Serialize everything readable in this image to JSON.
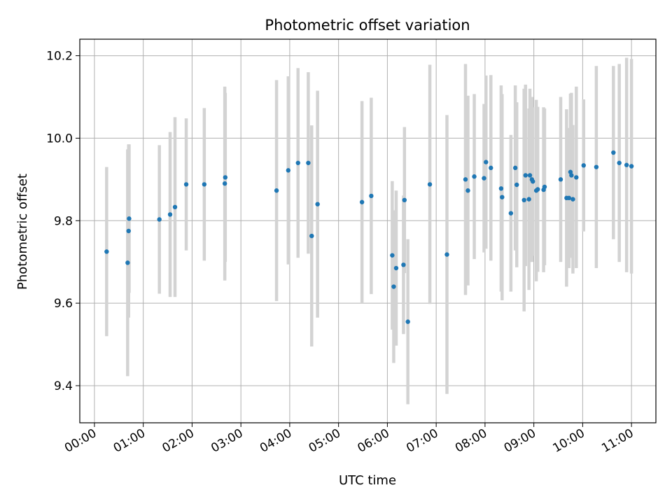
{
  "chart_data": {
    "type": "scatter",
    "title": "Photometric offset variation",
    "xlabel": "UTC time",
    "ylabel": "Photometric offset",
    "x_unit": "hours (UTC)",
    "xlim": [
      -0.3,
      11.5
    ],
    "ylim": [
      9.31,
      10.24
    ],
    "x_ticks": [
      0,
      1,
      2,
      3,
      4,
      5,
      6,
      7,
      8,
      9,
      10,
      11
    ],
    "x_tick_labels": [
      "00:00",
      "01:00",
      "02:00",
      "03:00",
      "04:00",
      "05:00",
      "06:00",
      "07:00",
      "08:00",
      "09:00",
      "10:00",
      "11:00"
    ],
    "y_ticks": [
      9.4,
      9.6,
      9.8,
      10.0,
      10.2
    ],
    "y_tick_labels": [
      "9.4",
      "9.6",
      "9.8",
      "10.0",
      "10.2"
    ],
    "grid": true,
    "colors": {
      "points": "#1f77b4",
      "errorbars": "#d3d3d3",
      "grid": "#b0b0b0"
    },
    "series": [
      {
        "x": [
          0.25,
          0.68,
          0.7,
          0.71,
          1.33,
          1.55,
          1.65,
          1.88,
          2.25,
          2.67,
          2.68,
          3.73,
          3.97,
          4.17,
          4.38,
          4.45,
          4.57,
          5.48,
          5.67,
          6.1,
          6.13,
          6.18,
          6.33,
          6.35,
          6.42,
          6.87,
          7.22,
          7.6,
          7.65,
          7.78,
          7.98,
          8.02,
          8.12,
          8.33,
          8.35,
          8.53,
          8.62,
          8.65,
          8.8,
          8.83,
          8.9,
          8.92,
          8.96,
          8.98,
          9.05,
          9.08,
          9.2,
          9.22,
          9.55,
          9.67,
          9.72,
          9.75,
          9.77,
          9.8,
          9.87,
          10.02,
          10.28,
          10.63,
          10.75,
          10.9,
          11.0
        ],
        "y": [
          9.725,
          9.698,
          9.775,
          9.805,
          9.803,
          9.815,
          9.833,
          9.888,
          9.888,
          9.89,
          9.905,
          9.873,
          9.922,
          9.94,
          9.94,
          9.763,
          9.84,
          9.845,
          9.86,
          9.716,
          9.64,
          9.685,
          9.693,
          9.85,
          9.555,
          9.888,
          9.718,
          9.9,
          9.873,
          9.907,
          9.903,
          9.942,
          9.928,
          9.878,
          9.857,
          9.818,
          9.928,
          9.887,
          9.85,
          9.91,
          9.852,
          9.91,
          9.9,
          9.895,
          9.873,
          9.876,
          9.875,
          9.882,
          9.9,
          9.855,
          9.855,
          9.918,
          9.91,
          9.852,
          9.905,
          9.934,
          9.93,
          9.965,
          9.94,
          9.935,
          9.932
        ],
        "yerr": [
          0.205,
          0.275,
          0.21,
          0.18,
          0.18,
          0.2,
          0.218,
          0.16,
          0.185,
          0.235,
          0.205,
          0.268,
          0.228,
          0.23,
          0.22,
          0.268,
          0.275,
          0.245,
          0.238,
          0.18,
          0.185,
          0.188,
          0.168,
          0.177,
          0.2,
          0.29,
          0.338,
          0.28,
          0.23,
          0.2,
          0.18,
          0.21,
          0.225,
          0.25,
          0.25,
          0.19,
          0.2,
          0.2,
          0.27,
          0.22,
          0.22,
          0.21,
          0.2,
          0.18,
          0.22,
          0.2,
          0.2,
          0.19,
          0.2,
          0.215,
          0.17,
          0.19,
          0.2,
          0.18,
          0.22,
          0.16,
          0.245,
          0.21,
          0.24,
          0.26,
          0.26
        ]
      }
    ]
  }
}
